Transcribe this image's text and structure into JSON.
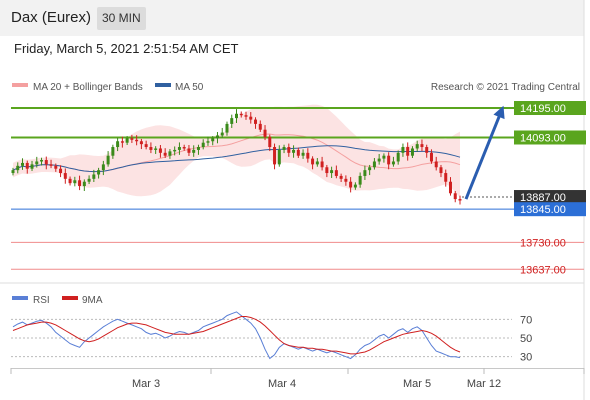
{
  "header": {
    "title": "Dax (Eurex)",
    "interval": "30 MIN"
  },
  "date_line": "Friday, March 5, 2021 2:51:54 AM CET",
  "legend": {
    "bb_label": "MA 20 + Bollinger Bands",
    "ma50_label": "MA 50",
    "credit": "Research © 2021 Trading Central",
    "rsi_label": "RSI",
    "rsi_ma_label": "9MA"
  },
  "colors": {
    "resistance": "#5aa51e",
    "current": "#2c6fd6",
    "support": "#f08c8c",
    "price_label": "#333333",
    "candle_up": "#3a8a1a",
    "candle_down": "#d02020",
    "ma50": "#3060a0",
    "bb": "#f4a0a0",
    "rsi": "#5a7fd6",
    "rsi_ma": "#d02020"
  },
  "chart_data": {
    "type": "candlestick",
    "y_range": [
      13600,
      14240
    ],
    "x_labels": [
      "Mar 3",
      "Mar 4",
      "Mar 5",
      "Mar 12"
    ],
    "levels": [
      {
        "value": 14195,
        "label": "14195.00",
        "kind": "resistance"
      },
      {
        "value": 14093,
        "label": "14093.00",
        "kind": "resistance"
      },
      {
        "value": 13887,
        "label": "13887.00",
        "kind": "current"
      },
      {
        "value": 13845,
        "label": "13845.00",
        "kind": "pivot"
      },
      {
        "value": 13730,
        "label": "13730.00",
        "kind": "support"
      },
      {
        "value": 13637,
        "label": "13637.00",
        "kind": "support"
      }
    ],
    "close": [
      13980,
      13995,
      14005,
      13985,
      14000,
      14010,
      14015,
      14000,
      13995,
      13985,
      13970,
      13950,
      13935,
      13945,
      13925,
      13940,
      13950,
      13965,
      13980,
      14000,
      14030,
      14060,
      14080,
      14075,
      14090,
      14085,
      14080,
      14070,
      14060,
      14050,
      14055,
      14040,
      14030,
      14045,
      14050,
      14060,
      14055,
      14040,
      14050,
      14060,
      14075,
      14080,
      14090,
      14100,
      14110,
      14140,
      14160,
      14175,
      14170,
      14165,
      14155,
      14140,
      14120,
      14095,
      14060,
      14000,
      14050,
      14060,
      14040,
      14050,
      14030,
      14040,
      14020,
      14000,
      14010,
      13990,
      13970,
      13980,
      13960,
      13950,
      13940,
      13920,
      13930,
      13960,
      13980,
      13990,
      14010,
      14020,
      14030,
      14000,
      14010,
      14040,
      14060,
      14030,
      14055,
      14070,
      14060,
      14040,
      14010,
      13990,
      13970,
      13940,
      13900,
      13880,
      13875
    ],
    "rsi": {
      "ticks": [
        70,
        50,
        30
      ],
      "y_range": [
        20,
        80
      ],
      "rsi": [
        62,
        65,
        67,
        64,
        66,
        68,
        69,
        66,
        62,
        56,
        52,
        48,
        44,
        42,
        40,
        46,
        50,
        54,
        58,
        62,
        65,
        68,
        70,
        68,
        66,
        64,
        62,
        60,
        56,
        54,
        55,
        53,
        50,
        52,
        55,
        57,
        56,
        54,
        56,
        58,
        62,
        64,
        66,
        68,
        70,
        74,
        76,
        78,
        74,
        70,
        66,
        60,
        50,
        38,
        28,
        32,
        40,
        44,
        42,
        40,
        38,
        40,
        38,
        36,
        38,
        36,
        34,
        36,
        34,
        32,
        30,
        28,
        32,
        38,
        42,
        44,
        48,
        52,
        54,
        50,
        54,
        58,
        60,
        56,
        60,
        62,
        58,
        50,
        42,
        36,
        34,
        32,
        30,
        30,
        29
      ],
      "ma9": [
        58,
        60,
        62,
        64,
        65,
        66,
        67,
        67,
        66,
        64,
        61,
        58,
        55,
        52,
        49,
        47,
        46,
        47,
        49,
        52,
        55,
        58,
        61,
        63,
        65,
        66,
        66,
        65,
        64,
        62,
        60,
        58,
        56,
        55,
        54,
        54,
        54,
        54,
        55,
        56,
        57,
        59,
        61,
        63,
        65,
        67,
        69,
        71,
        73,
        73,
        72,
        70,
        67,
        63,
        58,
        53,
        48,
        44,
        42,
        41,
        40,
        40,
        39,
        39,
        38,
        38,
        37,
        36,
        36,
        35,
        34,
        33,
        33,
        34,
        35,
        37,
        40,
        43,
        46,
        48,
        50,
        52,
        54,
        55,
        56,
        57,
        58,
        57,
        55,
        52,
        48,
        44,
        40,
        37,
        35
      ]
    }
  }
}
